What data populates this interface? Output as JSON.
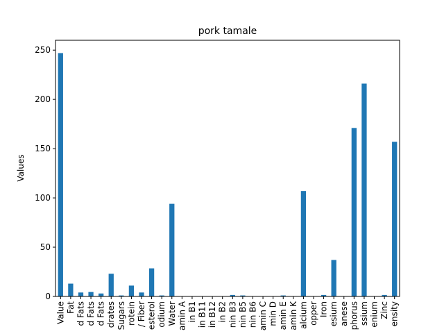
{
  "chart_data": {
    "type": "bar",
    "title": "pork tamale",
    "xlabel": "",
    "ylabel": "Values",
    "ylim": [
      0,
      260
    ],
    "yticks": [
      0,
      50,
      100,
      150,
      200,
      250
    ],
    "grid": false,
    "legend": "none",
    "bar_color": "#1f77b4",
    "categories": [
      "Value",
      "Fat",
      "d Fats",
      "d Fats",
      "d Fats",
      "drates",
      "Sugars",
      "rotein",
      "/ Fiber",
      "esterol",
      "odium",
      "Water",
      "amin A",
      "in B1",
      "in B11",
      "in B12",
      "in B2",
      "nin B3",
      "nin B5",
      "nin B6",
      "amin C",
      "min D",
      "amin E",
      "amin K",
      "alcium",
      "opper",
      "Iron",
      "esium",
      "anese",
      "phorus",
      "ssium",
      "enium",
      "Zinc",
      "ensity"
    ],
    "values": [
      247,
      13,
      4,
      4.5,
      3,
      23,
      1,
      11,
      4,
      28.5,
      1,
      94,
      0,
      0,
      0,
      0,
      0,
      1.5,
      1,
      0,
      0,
      0,
      1,
      0,
      107,
      0,
      1.5,
      37,
      0,
      171,
      216,
      0,
      1.5,
      157
    ]
  }
}
